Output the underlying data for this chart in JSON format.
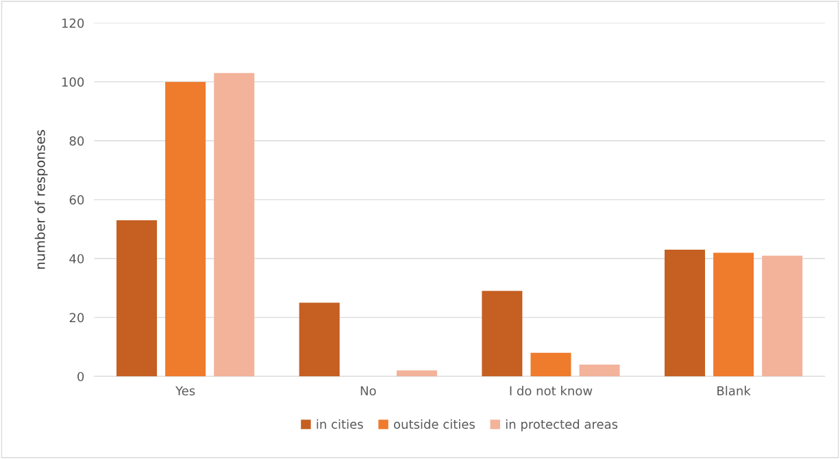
{
  "chart_data": {
    "type": "bar",
    "ylabel": "number of responses",
    "categories": [
      "Yes",
      "No",
      "I do not know",
      "Blank"
    ],
    "series": [
      {
        "name": "in cities",
        "color": "#c55f22",
        "values": [
          53,
          25,
          29,
          43
        ]
      },
      {
        "name": "outside cities",
        "color": "#ef7b2c",
        "values": [
          100,
          0,
          8,
          42
        ]
      },
      {
        "name": "in protected areas",
        "color": "#f2b39a",
        "values": [
          103,
          2,
          4,
          41
        ]
      }
    ],
    "ylim": [
      0,
      120
    ],
    "yticks": [
      0,
      20,
      40,
      60,
      80,
      100,
      120
    ],
    "grid": "y",
    "legend": "bottom"
  }
}
